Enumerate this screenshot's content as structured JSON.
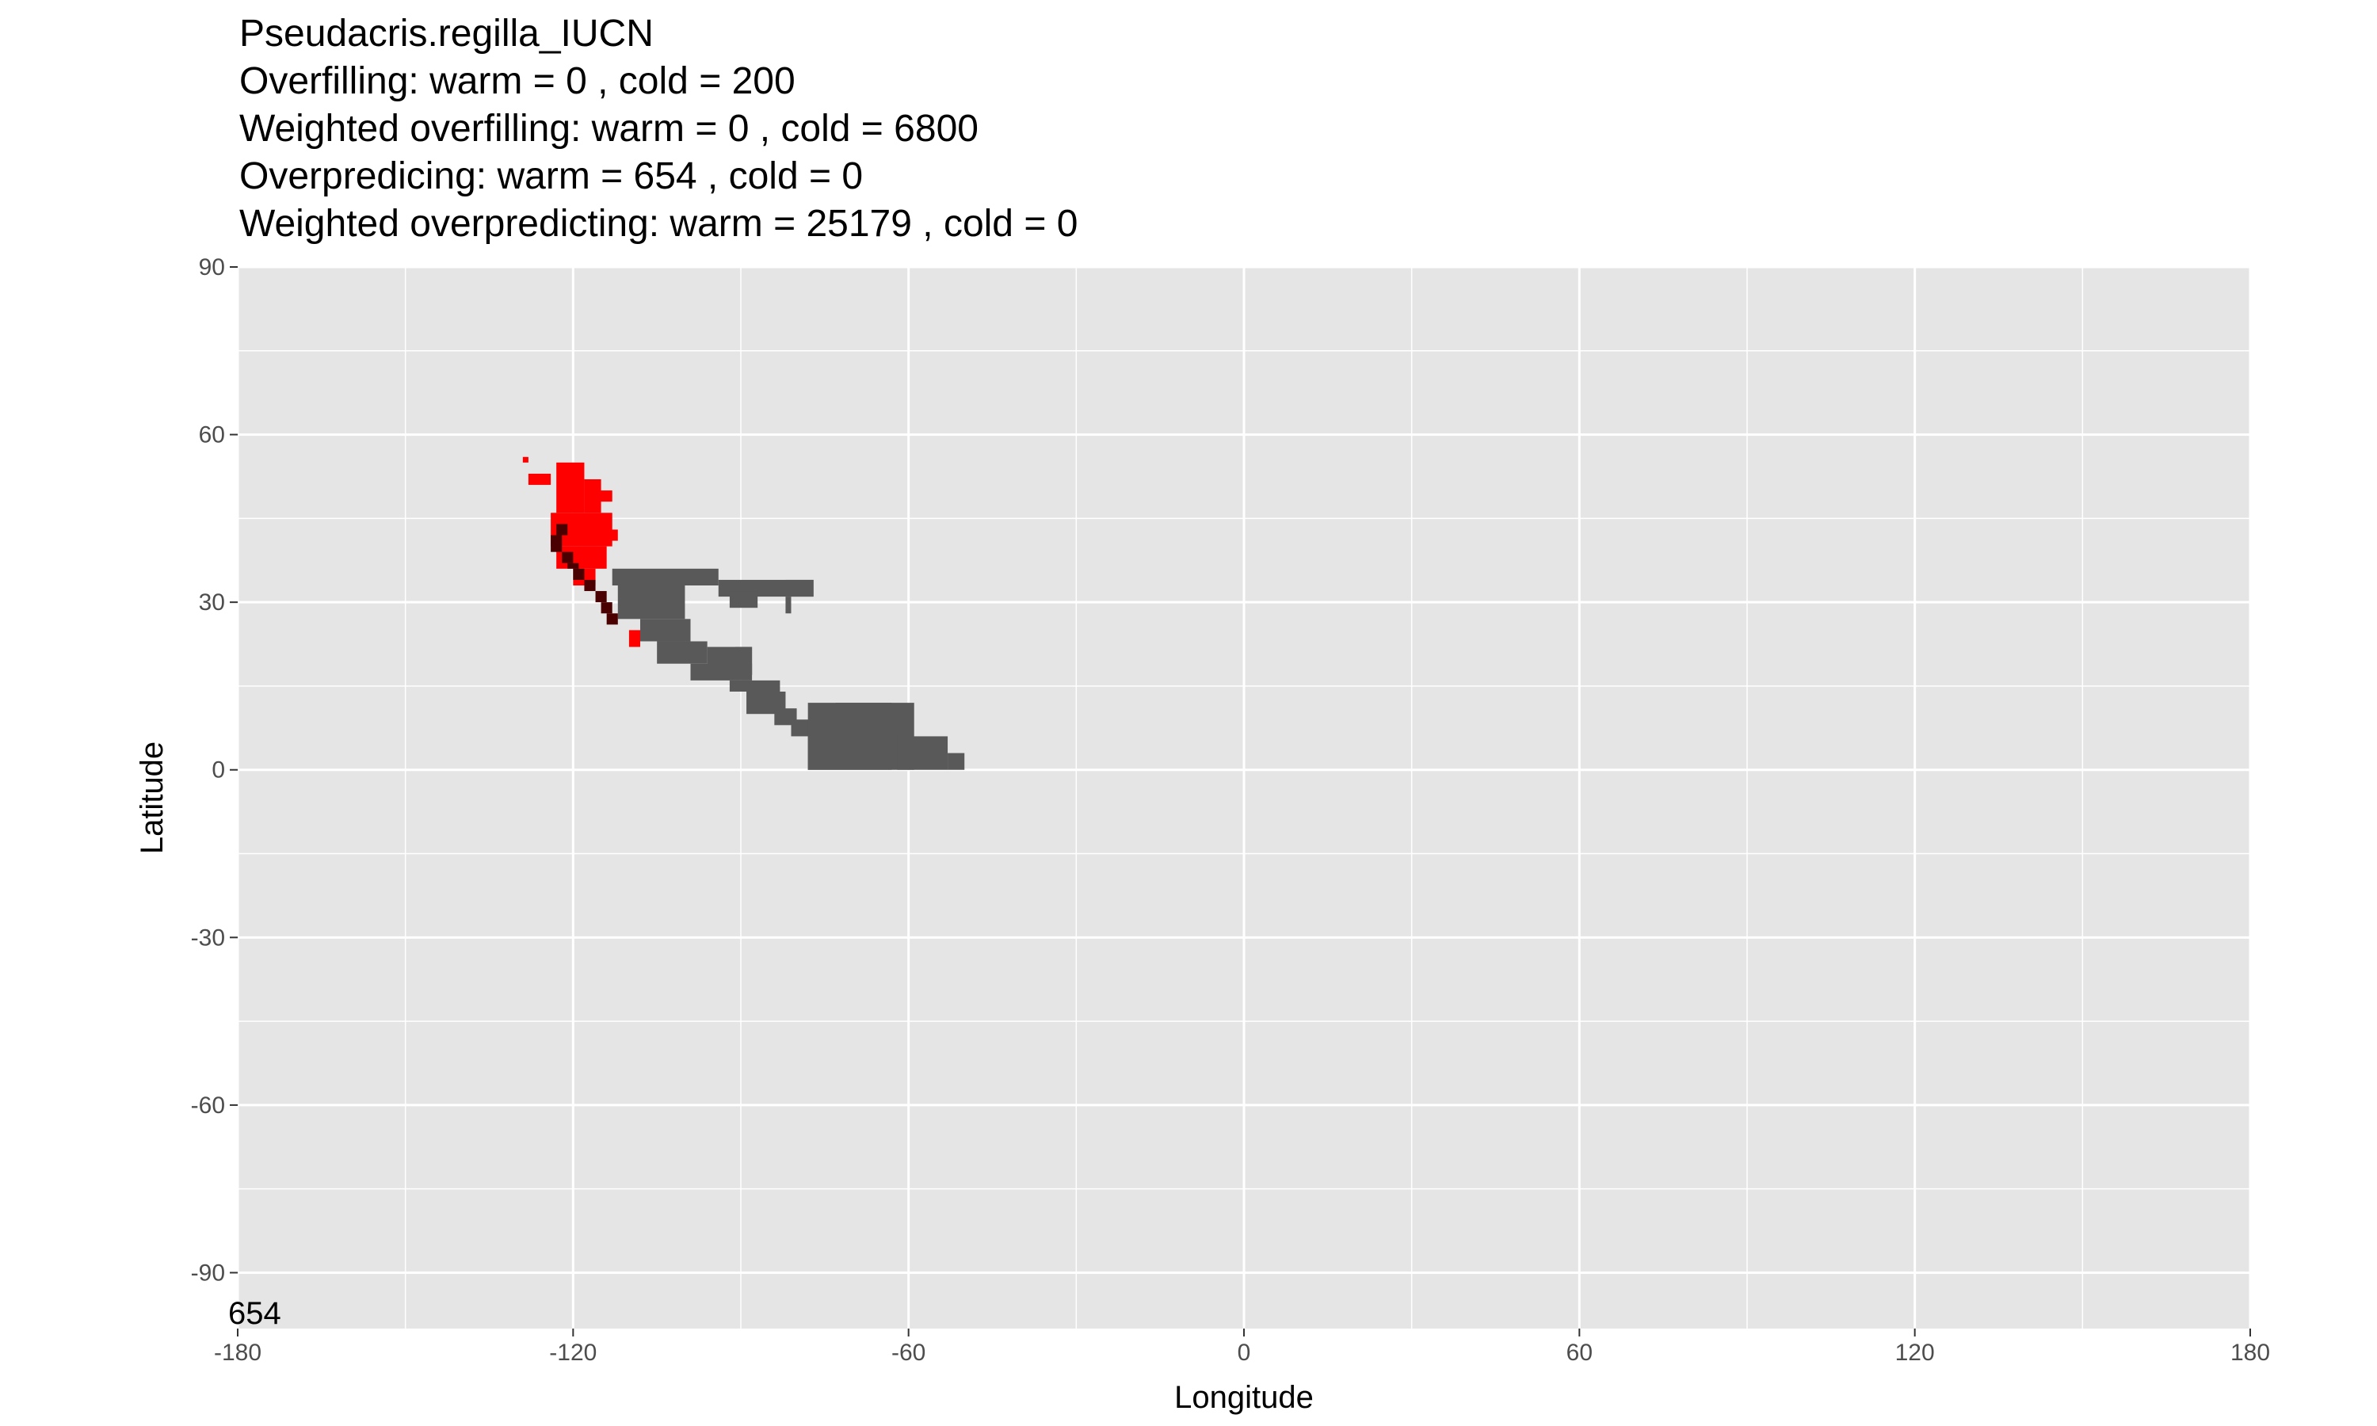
{
  "chart_data": {
    "type": "heatmap",
    "title_lines": [
      "Pseudacris.regilla_IUCN",
      "Overfilling: warm =  0  , cold =  200",
      "Weighted overfilling: warm =  0 , cold =  6800",
      "Overpredicing: warm =  654  , cold =  0",
      "Weighted overpredicting: warm =  25179 , cold =  0"
    ],
    "xlabel": "Longitude",
    "ylabel": "Latitude",
    "xlim": [
      -180,
      180
    ],
    "ylim": [
      -100,
      90
    ],
    "x_ticks": [
      -180,
      -120,
      -60,
      0,
      60,
      120,
      180
    ],
    "x_tick_labels": [
      "-180",
      "-120",
      "-60",
      "0",
      "60",
      "120",
      "180"
    ],
    "y_ticks": [
      90,
      60,
      30,
      0,
      -30,
      -60,
      -90
    ],
    "y_tick_labels": [
      "90",
      "60",
      "30",
      "0",
      "-30",
      "-60",
      "-90"
    ],
    "corner_annotation": "654",
    "grid": true,
    "legend": "none",
    "colors": {
      "panel": "#e5e5e5",
      "grid": "#ffffff",
      "predicted_range": "#595959",
      "observed_range": "#ff0000",
      "overlap": "#4a0000"
    },
    "series": [
      {
        "category": "gray",
        "rects": [
          [
            -113,
            -94,
            36,
            33
          ],
          [
            -94,
            -77,
            34,
            31
          ],
          [
            -82,
            -77,
            34,
            31
          ],
          [
            -112,
            -100,
            33,
            27
          ],
          [
            -108,
            -99,
            27,
            23
          ],
          [
            -92,
            -87,
            32,
            29
          ],
          [
            -82,
            -81,
            31,
            28
          ],
          [
            -105,
            -96,
            23,
            19
          ],
          [
            -96,
            -88,
            22,
            17
          ],
          [
            -91,
            -88,
            22,
            17
          ],
          [
            -99,
            -88,
            19,
            16
          ],
          [
            -92,
            -83,
            16,
            14
          ],
          [
            -89,
            -82,
            14,
            10
          ],
          [
            -84,
            -80,
            11,
            8
          ],
          [
            -81,
            -77,
            9,
            6
          ],
          [
            -78,
            -73,
            6,
            0
          ],
          [
            -78,
            -63,
            12,
            0
          ],
          [
            -73,
            -59,
            12,
            0
          ],
          [
            -62,
            -53,
            6,
            0
          ],
          [
            -53,
            -50,
            3,
            0
          ]
        ]
      },
      {
        "category": "red",
        "rects": [
          [
            -129,
            -128,
            56,
            55
          ],
          [
            -128,
            -124,
            53,
            51
          ],
          [
            -123,
            -118,
            55,
            46
          ],
          [
            -118,
            -115,
            52,
            46
          ],
          [
            -116,
            -113,
            50,
            48
          ],
          [
            -124,
            -113,
            46,
            40
          ],
          [
            -123,
            -114,
            40,
            36
          ],
          [
            -120,
            -116,
            36,
            33
          ],
          [
            -114,
            -112,
            43,
            41
          ],
          [
            -110,
            -108,
            25,
            22
          ]
        ]
      },
      {
        "category": "dark",
        "rects": [
          [
            -123,
            -121,
            44,
            42
          ],
          [
            -124,
            -122,
            42,
            39
          ],
          [
            -122,
            -120,
            39,
            37
          ],
          [
            -121,
            -119,
            37,
            36
          ],
          [
            -120,
            -118,
            36,
            34
          ],
          [
            -118,
            -116,
            34,
            32
          ],
          [
            -116,
            -114,
            32,
            30
          ],
          [
            -115,
            -113,
            30,
            28
          ],
          [
            -114,
            -112,
            28,
            26
          ]
        ]
      }
    ]
  }
}
